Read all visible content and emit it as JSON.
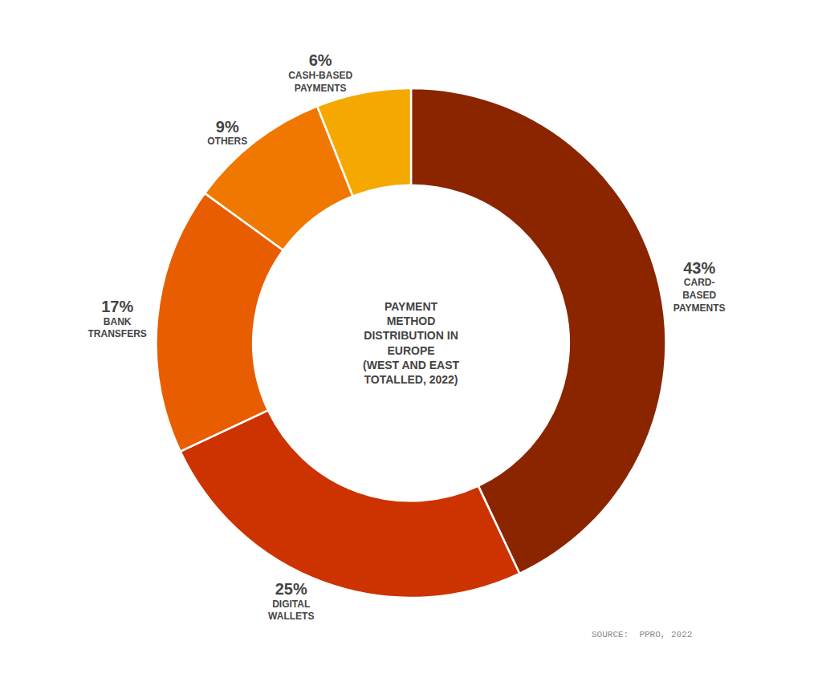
{
  "chart_data": {
    "type": "pie",
    "title": "PAYMENT\nMETHOD\nDISTRIBUTION IN\nEUROPE\n(WEST AND EAST\nTOTALLED, 2022)",
    "categories": [
      "CARD-\nBASED\nPAYMENTS",
      "DIGITAL\nWALLETS",
      "BANK\nTRANSFERS",
      "OTHERS",
      "CASH-BASED\nPAYMENTS"
    ],
    "values": [
      43,
      25,
      17,
      9,
      6
    ],
    "value_labels": [
      "43%",
      "25%",
      "17%",
      "9%",
      "6%"
    ],
    "colors": [
      "#8B2500",
      "#CC3300",
      "#E85D00",
      "#F07800",
      "#F5A800"
    ],
    "data_labels": true,
    "annotations": [
      "SOURCE:  PPRO, 2022"
    ]
  }
}
